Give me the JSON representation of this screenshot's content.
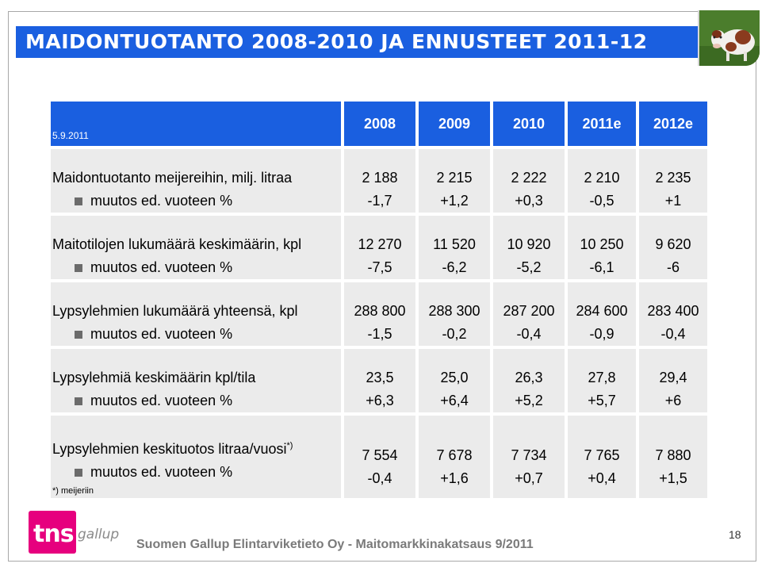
{
  "title": "MAIDONTUOTANTO 2008-2010 JA ENNUSTEET 2011-12",
  "photo": {
    "icon": "cow-photo",
    "accent": "#4a7a2e"
  },
  "table": {
    "date": "5.9.2011",
    "years": [
      "2008",
      "2009",
      "2010",
      "2011e",
      "2012e"
    ],
    "rows": [
      {
        "label": "Maidontuotanto meijereihin, milj. litraa",
        "values": [
          "2 188",
          "2 215",
          "2 222",
          "2 210",
          "2 235"
        ],
        "change_label": "muutos ed. vuoteen %",
        "changes": [
          "-1,7",
          "+1,2",
          "+0,3",
          "-0,5",
          "+1"
        ]
      },
      {
        "label": "Maitotilojen lukumäärä keskimäärin, kpl",
        "values": [
          "12 270",
          "11 520",
          "10 920",
          "10 250",
          "9 620"
        ],
        "change_label": "muutos ed. vuoteen %",
        "changes": [
          "-7,5",
          "-6,2",
          "-5,2",
          "-6,1",
          "-6"
        ]
      },
      {
        "label": "Lypsylehmien lukumäärä yhteensä, kpl",
        "values": [
          "288 800",
          "288 300",
          "287 200",
          "284 600",
          "283 400"
        ],
        "change_label": "muutos ed. vuoteen %",
        "changes": [
          "-1,5",
          "-0,2",
          "-0,4",
          "-0,9",
          "-0,4"
        ]
      },
      {
        "label": "Lypsylehmiä keskimäärin kpl/tila",
        "values": [
          "23,5",
          "25,0",
          "26,3",
          "27,8",
          "29,4"
        ],
        "change_label": "muutos ed. vuoteen %",
        "changes": [
          "+6,3",
          "+6,4",
          "+5,2",
          "+5,7",
          "+6"
        ]
      },
      {
        "label": "Lypsylehmien keskituotos litraa/vuosi",
        "label_sup": "*)",
        "values": [
          "7 554",
          "7 678",
          "7 734",
          "7 765",
          "7 880"
        ],
        "change_label": "muutos ed. vuoteen %",
        "changes": [
          "-0,4",
          "+1,6",
          "+0,7",
          "+0,4",
          "+1,5"
        ]
      }
    ],
    "footnote": "*) meijeriin"
  },
  "colors": {
    "header_blue": "#1a5fe0",
    "cell_gray": "#ebebeb",
    "logo_magenta": "#e6007e"
  },
  "logo": {
    "tns": "tns",
    "gallup": "gallup"
  },
  "footer": "Suomen Gallup Elintarviketieto Oy - Maitomarkkinakatsaus 9/2011",
  "page_number": "18"
}
